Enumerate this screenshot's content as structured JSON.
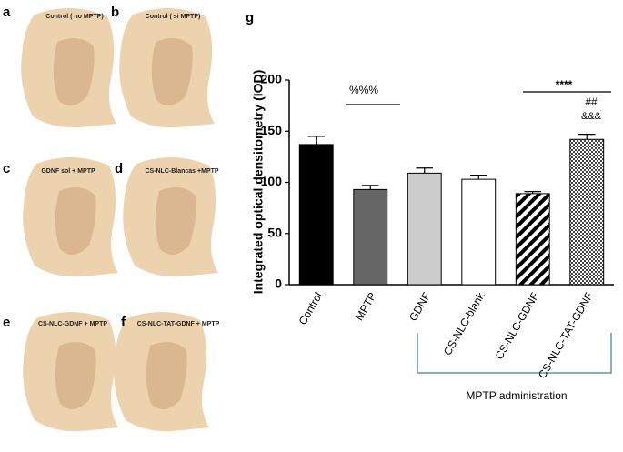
{
  "panels": [
    {
      "letter": "a",
      "caption": "Control ( no MPTP)"
    },
    {
      "letter": "b",
      "caption": "Control ( si MPTP)"
    },
    {
      "letter": "c",
      "caption": "GDNF sol + MPTP"
    },
    {
      "letter": "d",
      "caption": "CS-NLC-Blancas +MPTP"
    },
    {
      "letter": "e",
      "caption": "CS-NLC-GDNF + MPTP"
    },
    {
      "letter": "f",
      "caption": "CS-NLC-TAT-GDNF + MPTP"
    }
  ],
  "chart_data": {
    "type": "bar",
    "panel_letter": "g",
    "y_label": "Integrated optical densitometry (IOD)",
    "categories": [
      "Control",
      "MPTP",
      "GDNF",
      "CS-NLC-blank",
      "CS-NLC-GDNF",
      "CS-NLC-TAT-GDNF"
    ],
    "values": [
      137,
      93,
      109,
      103,
      89,
      142
    ],
    "errors": [
      8,
      4,
      5,
      4,
      2,
      5
    ],
    "colors": [
      "#000000",
      "#666666",
      "#cccccc",
      "#ffffff",
      "#ffffff",
      "#ffffff"
    ],
    "patterns": [
      null,
      null,
      null,
      null,
      "diagonal",
      "crosshatch"
    ],
    "ylim": [
      0,
      200
    ],
    "yticks": [
      0,
      50,
      100,
      150,
      200
    ],
    "annotations": [
      "%%%",
      "****",
      "##",
      "&&&"
    ],
    "group_label": "MPTP administration"
  }
}
